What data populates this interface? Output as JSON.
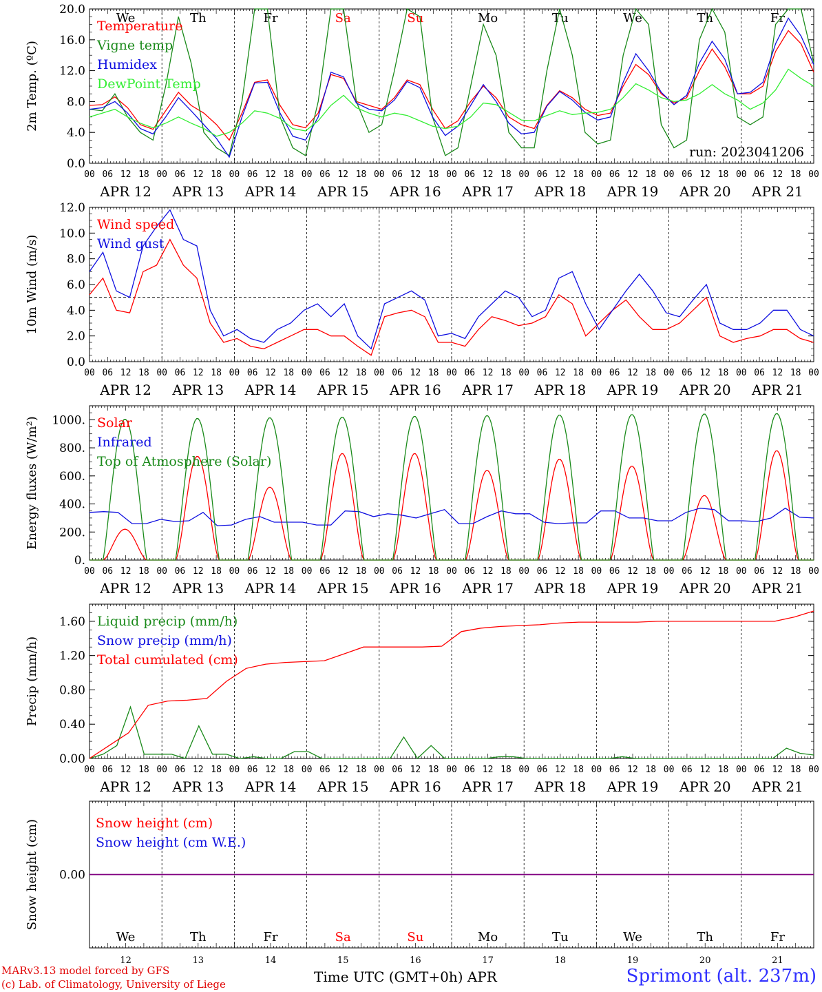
{
  "run_label": "run: 2023041206",
  "x_axis": {
    "hour_ticks": [
      "00",
      "06",
      "12",
      "18"
    ],
    "date_labels": [
      "APR 12",
      "APR 13",
      "APR 14",
      "APR 15",
      "APR 16",
      "APR 17",
      "APR 18",
      "APR 19",
      "APR 20",
      "APR 21"
    ],
    "weekdays": [
      "We",
      "Th",
      "Fr",
      "Sa",
      "Su",
      "Mo",
      "Tu",
      "We",
      "Th",
      "Fr"
    ],
    "weekend_indices": [
      3,
      4
    ],
    "day_numbers": [
      "12",
      "13",
      "14",
      "15",
      "16",
      "17",
      "18",
      "19",
      "20",
      "21"
    ],
    "title": "Time UTC (GMT+0h)",
    "month": "APR"
  },
  "footer": {
    "model": "MARv3.13 model forced by GFS",
    "lab": "(c) Lab. of Climatology, University of Liege",
    "station": "Sprimont (alt. 237m)"
  },
  "colors": {
    "red": "#ff0000",
    "blue": "#1010e0",
    "green": "#1a8a1a",
    "lightgreen": "#33ee33",
    "purple": "#800080"
  },
  "chart_data": [
    {
      "type": "line",
      "ylabel": "2m Temp. (ºC)",
      "ylim": [
        0,
        20
      ],
      "yticks": [
        "0.0",
        "4.0",
        "8.0",
        "12.0",
        "16.0",
        "20.0"
      ],
      "series": [
        {
          "name": "Temperature",
          "color": "red",
          "values": [
            7.5,
            7.6,
            8.6,
            7.2,
            5.0,
            4.4,
            6.8,
            9.2,
            7.5,
            6.5,
            5.0,
            3.0,
            6.5,
            10.5,
            10.8,
            7.5,
            5.0,
            4.6,
            6.5,
            11.5,
            11.0,
            8.0,
            7.5,
            7.0,
            8.5,
            10.8,
            10.2,
            7.0,
            4.5,
            5.5,
            8.0,
            10.0,
            8.5,
            6.0,
            5.0,
            4.5,
            7.5,
            9.4,
            8.5,
            7.0,
            6.2,
            6.5,
            10.0,
            12.8,
            11.5,
            9.0,
            7.8,
            8.5,
            12.0,
            14.8,
            12.5,
            9.0,
            9.0,
            10.0,
            14.5,
            17.2,
            15.5,
            11.8
          ]
        },
        {
          "name": "Vigne temp",
          "color": "green",
          "values": [
            7.0,
            6.8,
            9.0,
            6.0,
            4.0,
            3.0,
            10.0,
            19.0,
            13.0,
            4.0,
            2.0,
            1.0,
            8.0,
            20.0,
            20.0,
            6.0,
            2.0,
            1.0,
            8.0,
            20.0,
            20.0,
            8.0,
            4.0,
            5.0,
            12.0,
            20.0,
            19.0,
            6.0,
            1.0,
            2.0,
            10.0,
            18.0,
            14.0,
            4.0,
            2.0,
            2.0,
            12.0,
            20.0,
            14.0,
            4.0,
            2.5,
            3.0,
            14.0,
            20.0,
            18.0,
            5.0,
            2.0,
            3.0,
            16.0,
            20.0,
            17.0,
            6.0,
            5.0,
            6.0,
            18.0,
            20.0,
            20.0,
            13.0
          ]
        },
        {
          "name": "Humidex",
          "color": "blue",
          "values": [
            7.0,
            7.2,
            8.0,
            6.5,
            4.5,
            3.8,
            6.0,
            8.5,
            6.8,
            5.0,
            3.2,
            0.8,
            6.0,
            10.4,
            10.5,
            6.5,
            3.5,
            3.0,
            6.0,
            11.8,
            11.2,
            7.8,
            7.0,
            6.8,
            8.2,
            10.6,
            9.8,
            6.0,
            3.6,
            4.8,
            7.5,
            10.2,
            8.0,
            5.2,
            3.8,
            4.0,
            7.4,
            9.3,
            8.2,
            6.6,
            5.6,
            6.0,
            10.5,
            14.2,
            12.0,
            9.2,
            7.6,
            8.8,
            13.0,
            15.8,
            13.5,
            9.0,
            9.2,
            10.5,
            15.5,
            18.8,
            16.5,
            12.8
          ]
        },
        {
          "name": "DewPoint Temp",
          "color": "lightgreen",
          "values": [
            6.0,
            6.5,
            7.0,
            6.0,
            5.2,
            4.6,
            5.2,
            6.0,
            5.2,
            4.5,
            3.5,
            4.0,
            5.2,
            6.8,
            6.5,
            5.8,
            4.5,
            4.2,
            5.5,
            7.5,
            8.8,
            7.2,
            6.5,
            6.0,
            6.5,
            6.2,
            5.5,
            4.8,
            4.5,
            4.8,
            6.0,
            7.8,
            7.6,
            6.6,
            5.6,
            5.5,
            6.2,
            6.8,
            6.3,
            6.5,
            6.6,
            7.0,
            8.5,
            10.3,
            9.5,
            8.5,
            8.0,
            8.2,
            9.0,
            10.2,
            9.0,
            8.2,
            7.0,
            7.8,
            9.5,
            12.2,
            11.0,
            10.0
          ]
        }
      ]
    },
    {
      "type": "line",
      "ylabel": "10m Wind (m/s)",
      "ylim": [
        0,
        12
      ],
      "yticks": [
        "0.0",
        "2.0",
        "4.0",
        "6.0",
        "8.0",
        "10.0",
        "12.0"
      ],
      "ref_line": 5,
      "series": [
        {
          "name": "Wind speed",
          "color": "red",
          "values": [
            5.2,
            6.5,
            4.0,
            3.8,
            7.0,
            7.5,
            9.5,
            7.5,
            6.5,
            3.0,
            1.5,
            1.8,
            1.2,
            1.0,
            1.5,
            2.0,
            2.5,
            2.5,
            2.0,
            2.0,
            1.2,
            0.5,
            3.5,
            3.8,
            4.0,
            3.5,
            1.5,
            1.5,
            1.2,
            2.5,
            3.5,
            3.2,
            2.8,
            3.0,
            3.5,
            5.2,
            4.5,
            2.0,
            3.0,
            4.0,
            4.8,
            3.5,
            2.5,
            2.5,
            3.0,
            4.0,
            5.0,
            2.0,
            1.5,
            1.8,
            2.0,
            2.5,
            2.5,
            1.8,
            1.5
          ]
        },
        {
          "name": "Wind gust",
          "color": "blue",
          "values": [
            7.0,
            8.5,
            5.5,
            5.0,
            9.0,
            10.5,
            11.8,
            9.5,
            9.0,
            4.0,
            2.0,
            2.5,
            1.8,
            1.5,
            2.5,
            3.0,
            4.0,
            4.5,
            3.5,
            4.5,
            2.0,
            1.0,
            4.5,
            5.0,
            5.5,
            4.8,
            2.0,
            2.2,
            1.8,
            3.5,
            4.5,
            5.5,
            5.0,
            3.5,
            4.0,
            6.5,
            7.0,
            4.5,
            2.5,
            4.0,
            5.5,
            6.8,
            5.5,
            3.8,
            3.5,
            4.8,
            6.0,
            3.0,
            2.5,
            2.5,
            3.0,
            4.0,
            4.0,
            2.5,
            2.0
          ]
        }
      ]
    },
    {
      "type": "line",
      "ylabel": "Energy fluxes (W/m²)",
      "ylim": [
        0,
        1100
      ],
      "yticks": [
        "0.",
        "200.",
        "400.",
        "600.",
        "800.",
        "1000."
      ],
      "series": [
        {
          "name": "Solar",
          "color": "red",
          "daily_peaks": [
            220,
            740,
            520,
            760,
            760,
            640,
            720,
            670,
            460,
            780
          ]
        },
        {
          "name": "Infrared",
          "color": "blue",
          "values": [
            340,
            345,
            340,
            260,
            260,
            290,
            275,
            280,
            340,
            245,
            250,
            290,
            310,
            270,
            270,
            270,
            250,
            250,
            350,
            345,
            310,
            330,
            320,
            300,
            330,
            360,
            260,
            260,
            310,
            350,
            330,
            330,
            270,
            260,
            265,
            265,
            350,
            350,
            300,
            300,
            280,
            280,
            340,
            370,
            360,
            280,
            280,
            275,
            300,
            370,
            305,
            300
          ]
        },
        {
          "name": "Top of Atmosphere (Solar)",
          "color": "green",
          "daily_peaks": [
            1005,
            1010,
            1015,
            1020,
            1025,
            1030,
            1035,
            1038,
            1042,
            1045
          ]
        }
      ]
    },
    {
      "type": "line",
      "ylabel": "Precip (mm/h)",
      "ylim": [
        0,
        1.8
      ],
      "yticks": [
        "0.00",
        "0.40",
        "0.80",
        "1.20",
        "1.60"
      ],
      "series": [
        {
          "name": "Liquid precip (mm/h)",
          "color": "green",
          "values": [
            0,
            0.05,
            0.15,
            0.6,
            0.05,
            0.05,
            0.05,
            0,
            0.38,
            0.05,
            0.05,
            0,
            0.02,
            0,
            0,
            0.08,
            0.08,
            0,
            0,
            0,
            0,
            0,
            0,
            0.25,
            0,
            0.15,
            0,
            0,
            0,
            0,
            0.02,
            0.02,
            0,
            0,
            0,
            0,
            0,
            0,
            0,
            0.02,
            0,
            0,
            0,
            0,
            0,
            0,
            0,
            0,
            0,
            0,
            0,
            0.12,
            0.06,
            0.04
          ]
        },
        {
          "name": "Snow precip (mm/h)",
          "color": "blue",
          "values": []
        },
        {
          "name": "Total cumulated (cm)",
          "color": "red",
          "values": [
            0,
            0.15,
            0.3,
            0.62,
            0.67,
            0.68,
            0.7,
            0.9,
            1.05,
            1.1,
            1.12,
            1.13,
            1.14,
            1.22,
            1.3,
            1.3,
            1.3,
            1.3,
            1.31,
            1.48,
            1.52,
            1.54,
            1.55,
            1.56,
            1.58,
            1.59,
            1.59,
            1.59,
            1.59,
            1.6,
            1.6,
            1.6,
            1.6,
            1.6,
            1.6,
            1.6,
            1.65,
            1.72
          ]
        }
      ]
    },
    {
      "type": "line",
      "ylabel": "Snow height (cm)",
      "ylim": [
        -1,
        1
      ],
      "yticks": [
        "0.00"
      ],
      "series": [
        {
          "name": "Snow height (cm)",
          "color": "red",
          "values": [
            0,
            0
          ]
        },
        {
          "name": "Snow height (cm W.E.)",
          "color": "blue",
          "values": [
            0,
            0
          ]
        }
      ]
    }
  ]
}
